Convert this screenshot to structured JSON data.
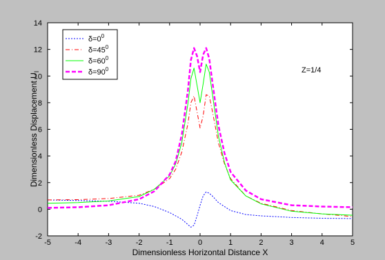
{
  "chart_data": {
    "type": "line",
    "xlabel": "Dimensionless Horizontal Distance X",
    "ylabel": "Dimensionless Displacement U",
    "ylabel_subscript": "I",
    "annotation": "Z=1/4",
    "xlim": [
      -5,
      5
    ],
    "ylim": [
      -2,
      14
    ],
    "xticks": [
      "-5",
      "-4",
      "-3",
      "-2",
      "-1",
      "0",
      "1",
      "2",
      "3",
      "4",
      "5"
    ],
    "yticks": [
      "-2",
      "0",
      "2",
      "4",
      "6",
      "8",
      "10",
      "12",
      "14"
    ],
    "legend_position": "top-left",
    "series": [
      {
        "name": "δ=0",
        "superscript": "0",
        "color": "#0000ff",
        "style": "dotted",
        "x": [
          -5,
          -4,
          -3,
          -2,
          -1.5,
          -1,
          -0.6,
          -0.4,
          -0.3,
          -0.2,
          -0.1,
          0,
          0.1,
          0.2,
          0.3,
          0.4,
          0.6,
          1,
          1.5,
          2,
          3,
          4,
          5
        ],
        "y": [
          0.7,
          0.65,
          0.6,
          0.45,
          0.2,
          -0.25,
          -0.75,
          -1.15,
          -1.35,
          -1.2,
          -0.5,
          0.3,
          1.0,
          1.3,
          1.2,
          1.0,
          0.5,
          -0.1,
          -0.4,
          -0.5,
          -0.62,
          -0.68,
          -0.7
        ]
      },
      {
        "name": "δ=45",
        "superscript": "0",
        "color": "#ff0000",
        "style": "dashdot",
        "x": [
          -5,
          -4,
          -3,
          -2,
          -1.5,
          -1,
          -0.8,
          -0.6,
          -0.4,
          -0.3,
          -0.2,
          -0.1,
          0,
          0.1,
          0.2,
          0.3,
          0.4,
          0.6,
          0.8,
          1,
          1.5,
          2,
          3,
          4,
          5
        ],
        "y": [
          0.7,
          0.72,
          0.8,
          1.05,
          1.5,
          2.3,
          3.0,
          4.3,
          6.4,
          8.0,
          8.5,
          7.3,
          6.1,
          7.0,
          8.6,
          8.5,
          7.4,
          5.0,
          3.4,
          2.3,
          1.0,
          0.45,
          -0.1,
          -0.35,
          -0.55
        ]
      },
      {
        "name": "δ=60",
        "superscript": "0",
        "color": "#00ff00",
        "style": "solid",
        "x": [
          -5,
          -4,
          -3,
          -2,
          -1.5,
          -1,
          -0.8,
          -0.6,
          -0.4,
          -0.3,
          -0.2,
          -0.1,
          0,
          0.1,
          0.2,
          0.3,
          0.4,
          0.6,
          0.8,
          1,
          1.5,
          2,
          3,
          4,
          5
        ],
        "y": [
          0.45,
          0.5,
          0.62,
          0.95,
          1.5,
          2.5,
          3.4,
          5.0,
          7.9,
          9.8,
          10.6,
          9.3,
          8.0,
          9.4,
          10.9,
          10.3,
          8.7,
          5.5,
          3.5,
          2.2,
          1.0,
          0.4,
          -0.15,
          -0.35,
          -0.45
        ]
      },
      {
        "name": "δ=90",
        "superscript": "0",
        "color": "#ff00ff",
        "style": "bold-dashed",
        "x": [
          -5,
          -4,
          -3,
          -2,
          -1.5,
          -1,
          -0.8,
          -0.6,
          -0.4,
          -0.3,
          -0.2,
          -0.1,
          0,
          0.1,
          0.2,
          0.3,
          0.4,
          0.6,
          0.8,
          1,
          1.5,
          2,
          3,
          4,
          5
        ],
        "y": [
          0.1,
          0.15,
          0.3,
          0.75,
          1.35,
          2.6,
          3.6,
          5.6,
          8.9,
          11.2,
          12.1,
          11.5,
          10.3,
          11.6,
          12.1,
          11.3,
          9.6,
          6.3,
          4.2,
          2.8,
          1.4,
          0.75,
          0.3,
          0.2,
          0.15
        ]
      }
    ]
  }
}
